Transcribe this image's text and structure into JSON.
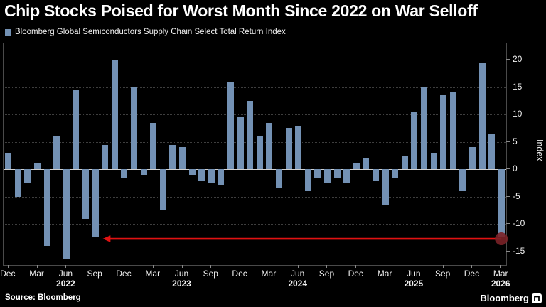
{
  "title": "Chip Stocks Poised for Worst Month Since 2022 on War Selloff",
  "legend": {
    "label": "Bloomberg Global Semiconductors Supply Chain Select Total Return Index",
    "swatch_color": "#7391b4"
  },
  "source": {
    "label": "Source: Bloomberg"
  },
  "branding": {
    "wordmark": "Bloomberg"
  },
  "colors": {
    "background": "#000000",
    "bar": "#7391b4",
    "arrow_red": "#e01212",
    "marker_dark_red": "#7a2127",
    "grid": "#3e3e3e",
    "zero_line": "#cfcfcf"
  },
  "chart_data": {
    "type": "bar",
    "title": "Chip Stocks Poised for Worst Month Since 2022 on War Selloff",
    "series_name": "Bloomberg Global Semiconductors Supply Chain Select Total Return Index",
    "xlabel": "",
    "ylabel": "Index",
    "ylim": [
      -17.5,
      23
    ],
    "yticks": [
      20,
      15,
      10,
      5,
      0,
      -5,
      -10,
      -15
    ],
    "grid": "horizontal-dotted",
    "legend_position": "top-left",
    "bar_color": "#7391b4",
    "x": [
      "2021-12",
      "2022-01",
      "2022-02",
      "2022-03",
      "2022-04",
      "2022-05",
      "2022-06",
      "2022-07",
      "2022-08",
      "2022-09",
      "2022-10",
      "2022-11",
      "2022-12",
      "2023-01",
      "2023-02",
      "2023-03",
      "2023-04",
      "2023-05",
      "2023-06",
      "2023-07",
      "2023-08",
      "2023-09",
      "2023-10",
      "2023-11",
      "2023-12",
      "2024-01",
      "2024-02",
      "2024-03",
      "2024-04",
      "2024-05",
      "2024-06",
      "2024-07",
      "2024-08",
      "2024-09",
      "2024-10",
      "2024-11",
      "2024-12",
      "2025-01",
      "2025-02",
      "2025-03",
      "2025-04",
      "2025-05",
      "2025-06",
      "2025-07",
      "2025-08",
      "2025-09",
      "2025-10",
      "2025-11",
      "2025-12",
      "2026-01",
      "2026-02",
      "2026-03"
    ],
    "values": [
      3,
      -5,
      -2.5,
      1,
      -14,
      6,
      -16.5,
      14.5,
      -9,
      -12.5,
      4.5,
      20,
      -1.5,
      15,
      -1,
      8.5,
      -7.5,
      4.5,
      4,
      -1,
      -2,
      -2.5,
      -3,
      16,
      9.5,
      12.5,
      6,
      8.5,
      -3.5,
      7.5,
      8,
      -4,
      -1.5,
      -2.5,
      -1.5,
      -2.5,
      1,
      2,
      -2,
      -6.5,
      -1.5,
      2.5,
      10.5,
      15,
      3,
      13.5,
      14,
      -4,
      4,
      19.5,
      6.5,
      -12.5
    ],
    "xticks": [
      {
        "i": 0,
        "label": "Dec"
      },
      {
        "i": 3,
        "label": "Mar"
      },
      {
        "i": 6,
        "label": "Jun"
      },
      {
        "i": 9,
        "label": "Sep"
      },
      {
        "i": 12,
        "label": "Dec"
      },
      {
        "i": 15,
        "label": "Mar"
      },
      {
        "i": 18,
        "label": "Jun"
      },
      {
        "i": 21,
        "label": "Sep"
      },
      {
        "i": 24,
        "label": "Dec"
      },
      {
        "i": 27,
        "label": "Mar"
      },
      {
        "i": 30,
        "label": "Jun"
      },
      {
        "i": 33,
        "label": "Sep"
      },
      {
        "i": 36,
        "label": "Dec"
      },
      {
        "i": 39,
        "label": "Mar"
      },
      {
        "i": 42,
        "label": "Jun"
      },
      {
        "i": 45,
        "label": "Sep"
      },
      {
        "i": 48,
        "label": "Dec"
      },
      {
        "i": 51,
        "label": "Mar"
      }
    ],
    "year_labels": [
      {
        "i": 6,
        "label": "2022"
      },
      {
        "i": 18,
        "label": "2023"
      },
      {
        "i": 30,
        "label": "2024"
      },
      {
        "i": 42,
        "label": "2025"
      },
      {
        "i": 51,
        "label": "2026"
      }
    ],
    "annotation": {
      "type": "arrow",
      "description": "horizontal red arrow from the March 2026 decline pointing back to the late-2022 selloff lows",
      "y": -12.7,
      "from_index": 51,
      "to_index": 10,
      "color": "#e01212",
      "marker": {
        "shape": "circle",
        "color": "#7a2127"
      }
    }
  }
}
